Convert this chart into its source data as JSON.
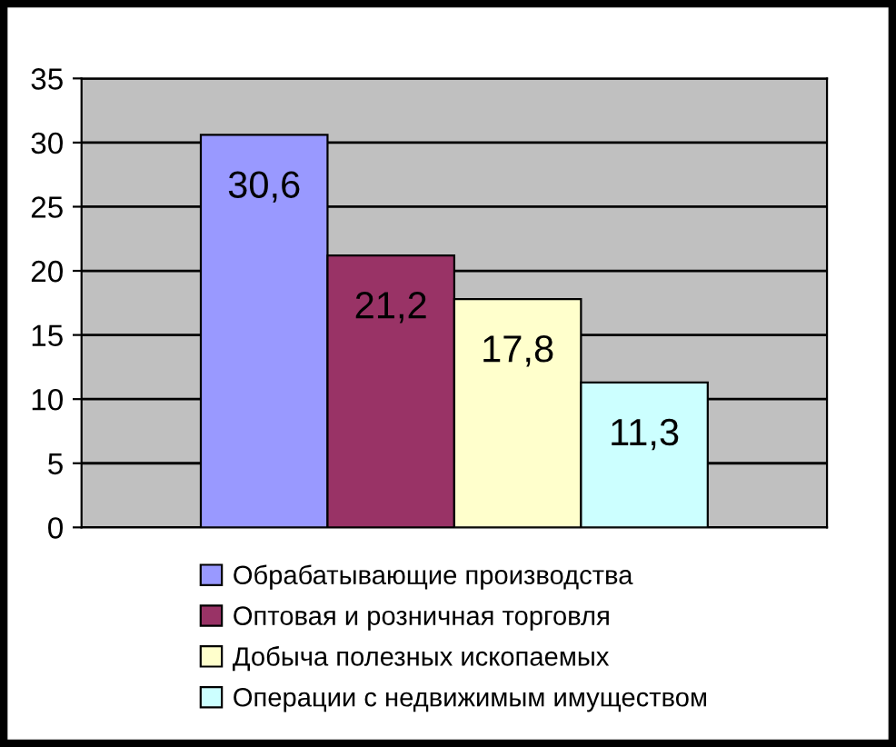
{
  "chart_data": {
    "type": "bar",
    "categories": [
      null
    ],
    "series": [
      {
        "name": "Обрабатывающие производства",
        "color": "#9999ff",
        "values": [
          30.6
        ],
        "value_labels": [
          "30,6"
        ]
      },
      {
        "name": "Оптовая и розничная торговля",
        "color": "#993366",
        "values": [
          21.2
        ],
        "value_labels": [
          "21,2"
        ]
      },
      {
        "name": "Добыча полезных ископаемых",
        "color": "#ffffcc",
        "values": [
          17.8
        ],
        "value_labels": [
          "17,8"
        ]
      },
      {
        "name": "Операции с недвижимым имуществом",
        "color": "#ccffff",
        "values": [
          11.3
        ],
        "value_labels": [
          "11,3"
        ]
      }
    ],
    "ylim": [
      0,
      35
    ],
    "yticks": [
      0,
      5,
      10,
      15,
      20,
      25,
      30,
      35
    ],
    "grid": "y",
    "legend": "bottom",
    "tick_labels": "y"
  }
}
